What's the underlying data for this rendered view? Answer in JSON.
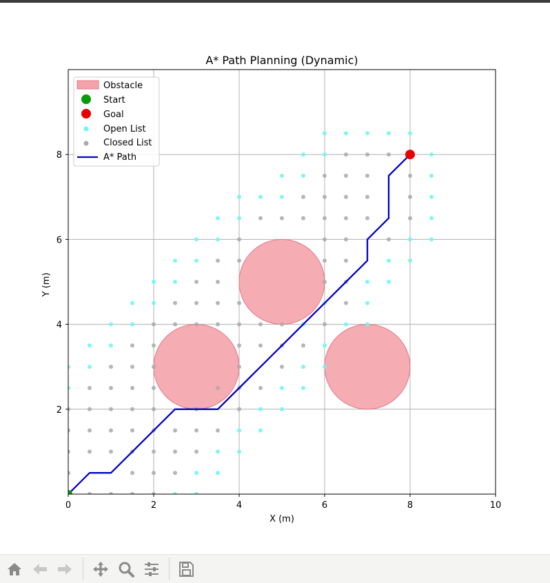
{
  "chart_data": {
    "type": "scatter",
    "title": "A* Path Planning (Dynamic)",
    "xlabel": "X (m)",
    "ylabel": "Y (m)",
    "xlim": [
      0,
      10
    ],
    "ylim": [
      0,
      10
    ],
    "xticks": [
      "0",
      "2",
      "4",
      "6",
      "8",
      "10"
    ],
    "yticks": [
      "2",
      "4",
      "6",
      "8"
    ],
    "grid": true,
    "legend_position": "top-left",
    "legend": [
      "Obstacle",
      "Start",
      "Goal",
      "Open List",
      "Closed List",
      "A* Path"
    ],
    "colors": {
      "obstacle": "#f4a3aa",
      "obstacle_edge": "#e07a86",
      "start": "#0a9a0a",
      "goal": "#e80000",
      "open": "#6ff6f6",
      "closed": "#a9a9a9",
      "path": "#0000c8"
    },
    "obstacles": [
      {
        "center": [
          3,
          3
        ],
        "radius": 1.0
      },
      {
        "center": [
          5,
          5
        ],
        "radius": 1.0
      },
      {
        "center": [
          7,
          3
        ],
        "radius": 1.0
      }
    ],
    "start": [
      0,
      0
    ],
    "goal": [
      8,
      8
    ],
    "open_list": [
      [
        6,
        8.5
      ],
      [
        6.5,
        8.5
      ],
      [
        7,
        8.5
      ],
      [
        7.5,
        8.5
      ],
      [
        8,
        8.5
      ],
      [
        5.5,
        8
      ],
      [
        6,
        8
      ],
      [
        8.5,
        8
      ],
      [
        5,
        7.5
      ],
      [
        5.5,
        7.5
      ],
      [
        8.5,
        7.5
      ],
      [
        4,
        7
      ],
      [
        4.5,
        7
      ],
      [
        5,
        7
      ],
      [
        8.5,
        7
      ],
      [
        3.5,
        6.5
      ],
      [
        4,
        6.5
      ],
      [
        8.5,
        6.5
      ],
      [
        3,
        6
      ],
      [
        3.5,
        6
      ],
      [
        8,
        6
      ],
      [
        8.5,
        6
      ],
      [
        2.5,
        5.5
      ],
      [
        3,
        5.5
      ],
      [
        7.5,
        5.5
      ],
      [
        8,
        5.5
      ],
      [
        2,
        5
      ],
      [
        2.5,
        5
      ],
      [
        7,
        5
      ],
      [
        7.5,
        5
      ],
      [
        1.5,
        4.5
      ],
      [
        2,
        4.5
      ],
      [
        6,
        4.5
      ],
      [
        7,
        4.5
      ],
      [
        1,
        4
      ],
      [
        1.5,
        4
      ],
      [
        5.5,
        4
      ],
      [
        6.5,
        4
      ],
      [
        7,
        4
      ],
      [
        0.5,
        3.5
      ],
      [
        1,
        3.5
      ],
      [
        6,
        3.5
      ],
      [
        0,
        3
      ],
      [
        0.5,
        3
      ],
      [
        5.5,
        3
      ],
      [
        6,
        3
      ],
      [
        0,
        2.5
      ],
      [
        5,
        2.5
      ],
      [
        5.5,
        2.5
      ],
      [
        4.5,
        2
      ],
      [
        5,
        2
      ],
      [
        4,
        1.5
      ],
      [
        4.5,
        1.5
      ],
      [
        3.5,
        1
      ],
      [
        4,
        1
      ],
      [
        3,
        0.5
      ],
      [
        3.5,
        0.5
      ],
      [
        2.5,
        0
      ],
      [
        3,
        0
      ]
    ],
    "closed_list": [
      [
        6.5,
        8
      ],
      [
        7,
        8
      ],
      [
        7.5,
        8
      ],
      [
        6,
        7.5
      ],
      [
        6.5,
        7.5
      ],
      [
        7,
        7.5
      ],
      [
        8,
        7.5
      ],
      [
        5.5,
        7
      ],
      [
        6,
        7
      ],
      [
        6.5,
        7
      ],
      [
        7,
        7
      ],
      [
        8,
        7
      ],
      [
        4.5,
        6.5
      ],
      [
        5,
        6.5
      ],
      [
        5.5,
        6.5
      ],
      [
        6,
        6.5
      ],
      [
        6.5,
        6.5
      ],
      [
        7,
        6.5
      ],
      [
        8,
        6.5
      ],
      [
        4,
        6
      ],
      [
        6,
        6
      ],
      [
        6.5,
        6
      ],
      [
        7.5,
        6
      ],
      [
        3.5,
        5.5
      ],
      [
        4,
        5.5
      ],
      [
        6,
        5.5
      ],
      [
        6.5,
        5.5
      ],
      [
        3,
        5
      ],
      [
        3.5,
        5
      ],
      [
        6,
        5
      ],
      [
        6.5,
        5
      ],
      [
        2.5,
        4.5
      ],
      [
        3,
        4.5
      ],
      [
        3.5,
        4.5
      ],
      [
        4,
        4.5
      ],
      [
        6.5,
        4.5
      ],
      [
        2,
        4
      ],
      [
        2.5,
        4
      ],
      [
        3,
        4
      ],
      [
        3.5,
        4
      ],
      [
        4,
        4
      ],
      [
        4.5,
        4
      ],
      [
        5,
        4
      ],
      [
        6,
        4
      ],
      [
        1.5,
        3.5
      ],
      [
        2,
        3.5
      ],
      [
        4,
        3.5
      ],
      [
        4.5,
        3.5
      ],
      [
        5,
        3.5
      ],
      [
        5.5,
        3.5
      ],
      [
        1,
        3
      ],
      [
        1.5,
        3
      ],
      [
        2,
        3
      ],
      [
        4,
        3
      ],
      [
        5,
        3
      ],
      [
        0.5,
        2.5
      ],
      [
        1,
        2.5
      ],
      [
        1.5,
        2.5
      ],
      [
        2,
        2.5
      ],
      [
        3.5,
        2.5
      ],
      [
        4,
        2.5
      ],
      [
        4.5,
        2.5
      ],
      [
        0,
        2
      ],
      [
        0.5,
        2
      ],
      [
        1,
        2
      ],
      [
        1.5,
        2
      ],
      [
        2,
        2
      ],
      [
        3,
        2
      ],
      [
        4,
        2
      ],
      [
        0,
        1.5
      ],
      [
        0.5,
        1.5
      ],
      [
        1,
        1.5
      ],
      [
        1.5,
        1.5
      ],
      [
        2,
        1.5
      ],
      [
        2.5,
        1.5
      ],
      [
        3,
        1.5
      ],
      [
        3.5,
        1.5
      ],
      [
        0,
        1
      ],
      [
        0.5,
        1
      ],
      [
        1,
        1
      ],
      [
        1.5,
        1
      ],
      [
        2,
        1
      ],
      [
        2.5,
        1
      ],
      [
        3,
        1
      ],
      [
        0,
        0.5
      ],
      [
        1.5,
        0.5
      ],
      [
        2,
        0.5
      ],
      [
        2.5,
        0.5
      ],
      [
        0.5,
        0
      ],
      [
        1,
        0
      ],
      [
        1.5,
        0
      ],
      [
        2,
        0
      ]
    ],
    "path": [
      [
        0,
        0
      ],
      [
        0.5,
        0.5
      ],
      [
        1,
        0.5
      ],
      [
        1.5,
        1
      ],
      [
        2,
        1.5
      ],
      [
        2.5,
        2
      ],
      [
        3,
        2
      ],
      [
        3.5,
        2
      ],
      [
        4,
        2.5
      ],
      [
        4.5,
        3
      ],
      [
        5,
        3.5
      ],
      [
        5.5,
        4
      ],
      [
        6,
        4.5
      ],
      [
        6.5,
        5
      ],
      [
        7,
        5.5
      ],
      [
        7,
        6
      ],
      [
        7.5,
        6.5
      ],
      [
        7.5,
        7
      ],
      [
        7.5,
        7.5
      ],
      [
        8,
        8
      ]
    ]
  },
  "toolbar": {
    "icons": [
      "home-icon",
      "back-arrow-icon",
      "forward-arrow-icon",
      "pan-icon",
      "zoom-icon",
      "configure-subplots-icon",
      "save-icon"
    ]
  }
}
